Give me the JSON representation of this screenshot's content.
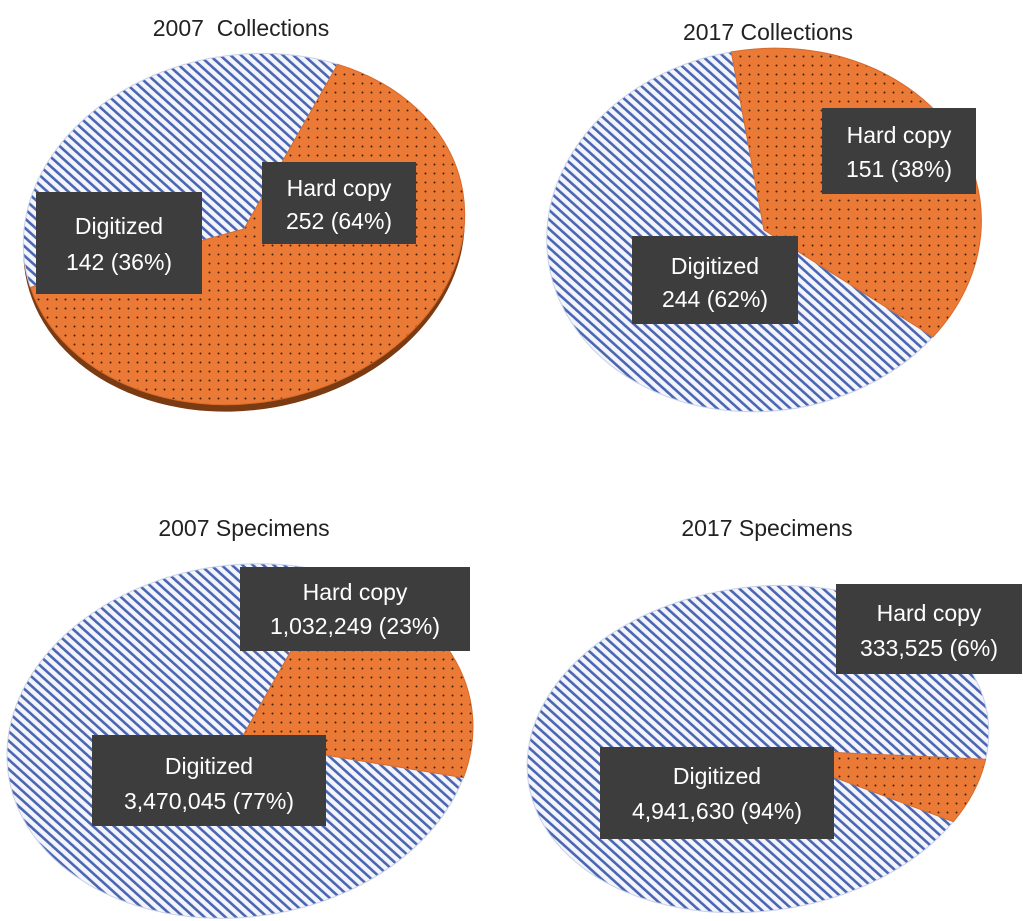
{
  "colors": {
    "hard_copy_fill": "#ec7a37",
    "hard_copy_dots": "#3a2210",
    "digitized_bg": "#f3f5fb",
    "digitized_stripes": "#4a66b3",
    "label_box": "#3d3d3d",
    "label_text": "#ffffff"
  },
  "chart_data": [
    {
      "type": "pie",
      "title": "2007  Collections",
      "slices": [
        {
          "name": "Hard copy",
          "value": 252,
          "percent": 64,
          "value_label": "252",
          "pattern": "dotted"
        },
        {
          "name": "Digitized",
          "value": 142,
          "percent": 36,
          "value_label": "142",
          "pattern": "striped"
        }
      ]
    },
    {
      "type": "pie",
      "title": "2017 Collections",
      "slices": [
        {
          "name": "Hard copy",
          "value": 151,
          "percent": 38,
          "value_label": "151",
          "pattern": "dotted"
        },
        {
          "name": "Digitized",
          "value": 244,
          "percent": 62,
          "value_label": "244",
          "pattern": "striped"
        }
      ]
    },
    {
      "type": "pie",
      "title": "2007 Specimens",
      "slices": [
        {
          "name": "Hard copy",
          "value": 1032249,
          "percent": 23,
          "value_label": "1,032,249",
          "pattern": "dotted"
        },
        {
          "name": "Digitized",
          "value": 3470045,
          "percent": 77,
          "value_label": "3,470,045",
          "pattern": "striped"
        }
      ]
    },
    {
      "type": "pie",
      "title": "2017 Specimens",
      "slices": [
        {
          "name": "Hard copy",
          "value": 333525,
          "percent": 6,
          "value_label": "333,525",
          "pattern": "dotted"
        },
        {
          "name": "Digitized",
          "value": 4941630,
          "percent": 94,
          "value_label": "4,941,630",
          "pattern": "striped"
        }
      ]
    }
  ]
}
